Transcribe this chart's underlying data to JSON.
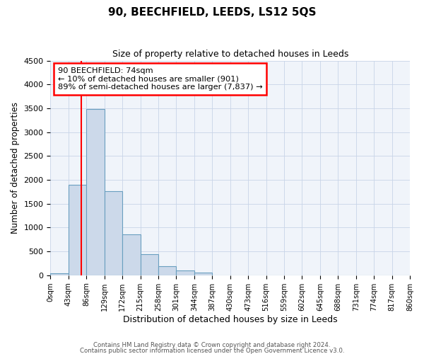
{
  "title": "90, BEECHFIELD, LEEDS, LS12 5QS",
  "subtitle": "Size of property relative to detached houses in Leeds",
  "xlabel": "Distribution of detached houses by size in Leeds",
  "ylabel": "Number of detached properties",
  "bar_color": "#ccd9ea",
  "bar_edge_color": "#6a9fc0",
  "bin_labels": [
    "0sqm",
    "43sqm",
    "86sqm",
    "129sqm",
    "172sqm",
    "215sqm",
    "258sqm",
    "301sqm",
    "344sqm",
    "387sqm",
    "430sqm",
    "473sqm",
    "516sqm",
    "559sqm",
    "602sqm",
    "645sqm",
    "688sqm",
    "731sqm",
    "774sqm",
    "817sqm",
    "860sqm"
  ],
  "bar_values": [
    40,
    1900,
    3480,
    1760,
    860,
    450,
    190,
    105,
    55,
    0,
    0,
    0,
    0,
    0,
    0,
    0,
    0,
    0,
    0,
    0
  ],
  "ylim": [
    0,
    4500
  ],
  "yticks": [
    0,
    500,
    1000,
    1500,
    2000,
    2500,
    3000,
    3500,
    4000,
    4500
  ],
  "annotation_title": "90 BEECHFIELD: 74sqm",
  "annotation_line1": "← 10% of detached houses are smaller (901)",
  "annotation_line2": "89% of semi-detached houses are larger (7,837) →",
  "red_line_x": 1.72,
  "footer1": "Contains HM Land Registry data © Crown copyright and database right 2024.",
  "footer2": "Contains public sector information licensed under the Open Government Licence v3.0."
}
